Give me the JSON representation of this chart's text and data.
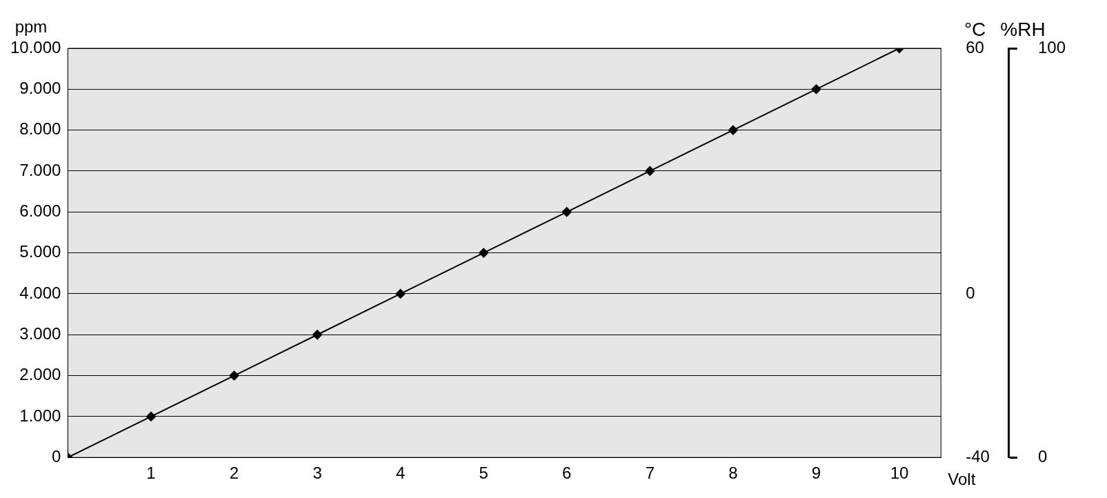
{
  "chart_data": {
    "type": "line",
    "xlabel": "Volt",
    "ylabel": "ppm",
    "y2label": "°C",
    "y3label": "%RH",
    "x": [
      0,
      1,
      2,
      3,
      4,
      5,
      6,
      7,
      8,
      9,
      10
    ],
    "series": [
      {
        "color": "#000000",
        "values": [
          0,
          1000,
          2000,
          3000,
          4000,
          5000,
          6000,
          7000,
          8000,
          9000,
          10000
        ]
      }
    ],
    "xlim": [
      0,
      10.5
    ],
    "xticks": [
      1,
      2,
      3,
      4,
      5,
      6,
      7,
      8,
      9,
      10
    ],
    "ylim": [
      0,
      10000
    ],
    "yticks": [
      0,
      {
        "value": 1000,
        "label": "1.000"
      },
      {
        "value": 2000,
        "label": "2.000"
      },
      {
        "value": 3000,
        "label": "3.000"
      },
      {
        "value": 4000,
        "label": "4.000"
      },
      {
        "value": 5000,
        "label": "5.000"
      },
      {
        "value": 6000,
        "label": "6.000"
      },
      {
        "value": 7000,
        "label": "7.000"
      },
      {
        "value": 8000,
        "label": "8.000"
      },
      {
        "value": 9000,
        "label": "9.000"
      },
      {
        "value": 10000,
        "label": "10.000"
      }
    ],
    "y2lim": [
      -40,
      60
    ],
    "y2ticks": [
      -40,
      0,
      60
    ],
    "y3lim": [
      0,
      100
    ],
    "y3ticks": [
      0,
      100
    ],
    "grid": "y",
    "legend": false,
    "marker": "diamond",
    "line_style": "solid"
  }
}
